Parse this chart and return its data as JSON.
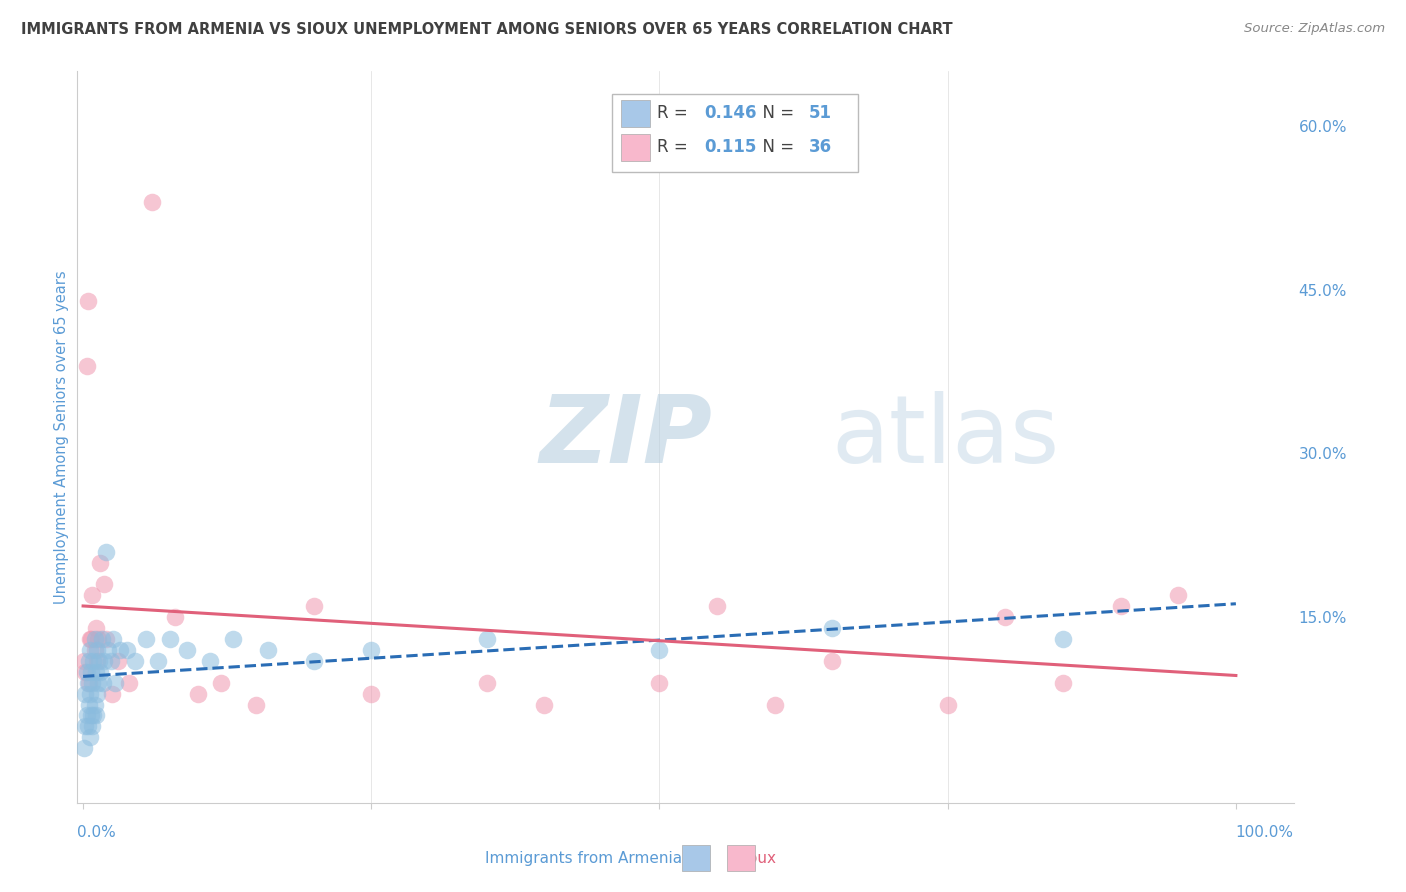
{
  "title": "IMMIGRANTS FROM ARMENIA VS SIOUX UNEMPLOYMENT AMONG SENIORS OVER 65 YEARS CORRELATION CHART",
  "source": "Source: ZipAtlas.com",
  "ylabel": "Unemployment Among Seniors over 65 years",
  "ytick_vals": [
    0.0,
    0.15,
    0.3,
    0.45,
    0.6
  ],
  "ytick_labels": [
    "",
    "15.0%",
    "30.0%",
    "45.0%",
    "60.0%"
  ],
  "ymin": -0.02,
  "ymax": 0.65,
  "xmin": -0.005,
  "xmax": 1.05,
  "watermark_zip": "ZIP",
  "watermark_atlas": "atlas",
  "armenia_R": "0.146",
  "armenia_N": "51",
  "sioux_R": "0.115",
  "sioux_N": "36",
  "armenia_scatter_color": "#8bbcde",
  "armenia_trend_color": "#2a6db5",
  "armenia_trend_style": "--",
  "sioux_scatter_color": "#f098b0",
  "sioux_trend_color": "#e0607a",
  "sioux_trend_style": "-",
  "legend_armenia_patch": "#a8c8e8",
  "legend_sioux_patch": "#f8b8cc",
  "background_color": "#ffffff",
  "grid_color": "#cccccc",
  "title_color": "#404040",
  "right_tick_color": "#5b9bd5",
  "bottom_label_color": "#5b9bd5",
  "ylabel_color": "#5b9bd5",
  "source_color": "#888888",
  "legend_text_color": "#444444",
  "legend_val_color": "#5b9bd5",
  "bottom_legend_armenia_color": "#5b9bd5",
  "bottom_legend_sioux_color": "#e0607a",
  "armenia_x": [
    0.001,
    0.002,
    0.002,
    0.003,
    0.003,
    0.004,
    0.004,
    0.005,
    0.005,
    0.006,
    0.006,
    0.006,
    0.007,
    0.007,
    0.008,
    0.008,
    0.009,
    0.009,
    0.01,
    0.01,
    0.011,
    0.011,
    0.012,
    0.012,
    0.013,
    0.014,
    0.015,
    0.016,
    0.017,
    0.018,
    0.02,
    0.022,
    0.024,
    0.026,
    0.028,
    0.032,
    0.038,
    0.045,
    0.055,
    0.065,
    0.075,
    0.09,
    0.11,
    0.13,
    0.16,
    0.2,
    0.25,
    0.35,
    0.5,
    0.65,
    0.85
  ],
  "armenia_y": [
    0.03,
    0.05,
    0.08,
    0.06,
    0.1,
    0.05,
    0.09,
    0.07,
    0.11,
    0.04,
    0.08,
    0.12,
    0.06,
    0.1,
    0.05,
    0.09,
    0.06,
    0.11,
    0.07,
    0.13,
    0.06,
    0.1,
    0.08,
    0.12,
    0.09,
    0.11,
    0.1,
    0.13,
    0.09,
    0.11,
    0.21,
    0.12,
    0.11,
    0.13,
    0.09,
    0.12,
    0.12,
    0.11,
    0.13,
    0.11,
    0.13,
    0.12,
    0.11,
    0.13,
    0.12,
    0.11,
    0.12,
    0.13,
    0.12,
    0.14,
    0.13
  ],
  "sioux_x": [
    0.001,
    0.002,
    0.003,
    0.004,
    0.005,
    0.006,
    0.007,
    0.008,
    0.01,
    0.011,
    0.012,
    0.013,
    0.015,
    0.018,
    0.02,
    0.025,
    0.03,
    0.04,
    0.06,
    0.08,
    0.1,
    0.12,
    0.15,
    0.2,
    0.25,
    0.35,
    0.4,
    0.5,
    0.55,
    0.6,
    0.65,
    0.75,
    0.8,
    0.85,
    0.9,
    0.95
  ],
  "sioux_y": [
    0.11,
    0.1,
    0.38,
    0.44,
    0.09,
    0.13,
    0.13,
    0.17,
    0.12,
    0.14,
    0.11,
    0.13,
    0.2,
    0.18,
    0.13,
    0.08,
    0.11,
    0.09,
    0.53,
    0.15,
    0.08,
    0.09,
    0.07,
    0.16,
    0.08,
    0.09,
    0.07,
    0.09,
    0.16,
    0.07,
    0.11,
    0.07,
    0.15,
    0.09,
    0.16,
    0.17
  ]
}
